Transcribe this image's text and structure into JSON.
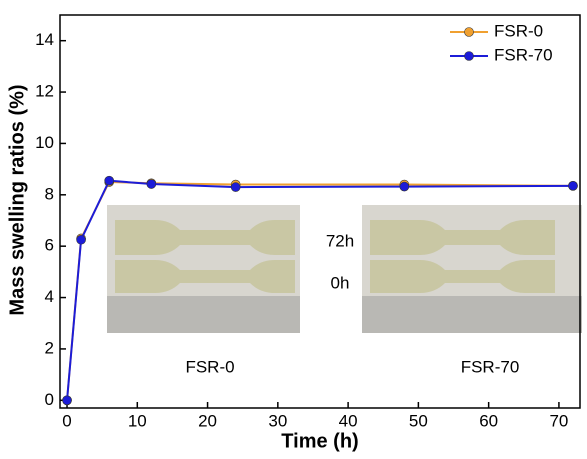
{
  "chart_data": {
    "type": "line",
    "x_label": "Time (h)",
    "y_label": "Mass swelling ratios (%)",
    "x": [
      0,
      2,
      6,
      12,
      24,
      48,
      72
    ],
    "series": [
      {
        "name": "FSR-0",
        "color": "#f0a030",
        "values": [
          0,
          6.3,
          8.5,
          8.45,
          8.4,
          8.4,
          8.35
        ]
      },
      {
        "name": "FSR-70",
        "color": "#1c1cd8",
        "values": [
          0,
          6.25,
          8.55,
          8.42,
          8.3,
          8.32,
          8.35
        ]
      }
    ],
    "xlim": [
      -1,
      73
    ],
    "ylim": [
      -0.3,
      15
    ],
    "xticks": [
      0,
      10,
      20,
      30,
      40,
      50,
      60,
      70
    ],
    "yticks": [
      0,
      2,
      4,
      6,
      8,
      10,
      12,
      14
    ],
    "legend": "upper right",
    "annotations": [
      {
        "text": "72h"
      },
      {
        "text": "0h"
      },
      {
        "text": "FSR-0"
      },
      {
        "text": "FSR-70"
      }
    ]
  }
}
